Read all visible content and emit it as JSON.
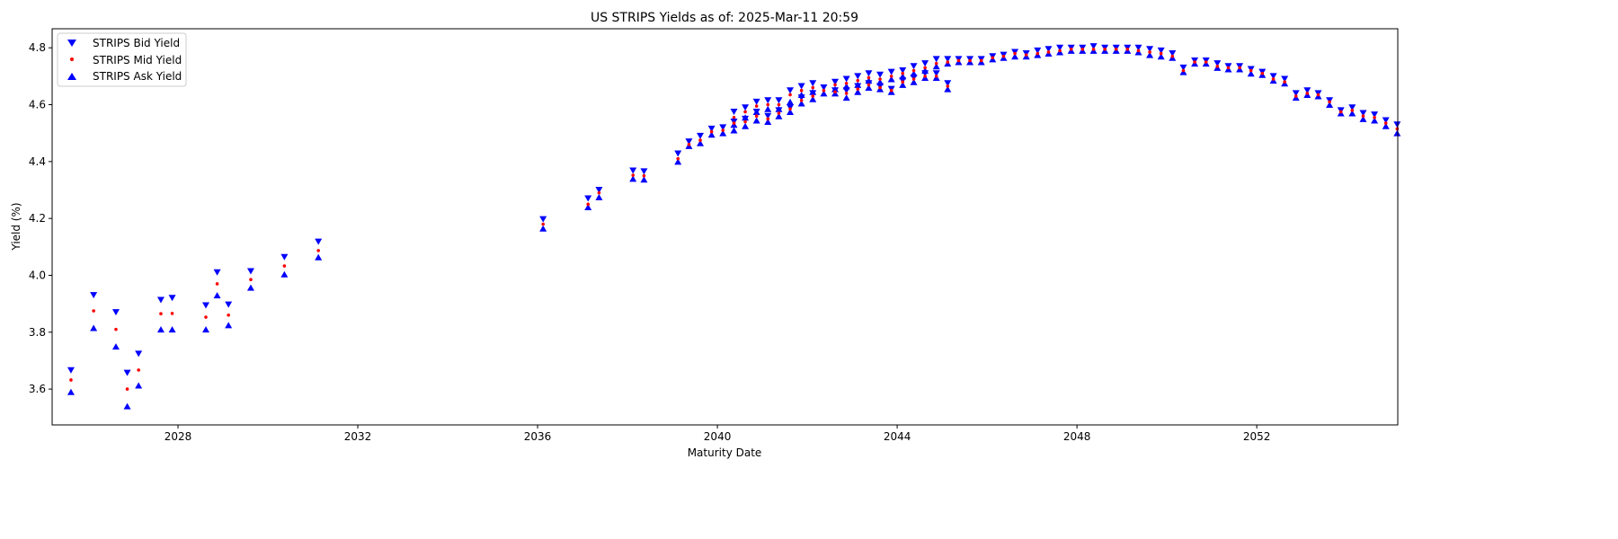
{
  "chart_data": {
    "type": "scatter",
    "title": "US STRIPS Yields as of: 2025-Mar-11 20:59",
    "xlabel": "Maturity Date",
    "ylabel": "Yield (%)",
    "xlim": [
      "2025-03-15",
      "2055-02-20"
    ],
    "ylim": [
      3.474,
      4.867
    ],
    "x_ticks": [
      "2028",
      "2032",
      "2036",
      "2040",
      "2044",
      "2048",
      "2052"
    ],
    "y_ticks": [
      "3.6",
      "3.8",
      "4.0",
      "4.2",
      "4.4",
      "4.6",
      "4.8"
    ],
    "grid": false,
    "legend_position": "top-left",
    "series": [
      {
        "name": "STRIPS Bid Yield",
        "marker": "triangle-down",
        "color": "#0000ff"
      },
      {
        "name": "STRIPS Mid Yield",
        "marker": "dot",
        "color": "#ff0000"
      },
      {
        "name": "STRIPS Ask Yield",
        "marker": "triangle-up",
        "color": "#0000ff"
      }
    ],
    "point_columns": [
      "maturity",
      "bid",
      "mid",
      "ask"
    ],
    "points": [
      [
        "2025-08-15",
        3.666,
        3.632,
        3.59
      ],
      [
        "2026-02-15",
        3.93,
        3.875,
        3.815
      ],
      [
        "2026-08-15",
        3.87,
        3.81,
        3.75
      ],
      [
        "2026-11-15",
        3.657,
        3.6,
        3.54
      ],
      [
        "2027-02-15",
        3.724,
        3.667,
        3.613
      ],
      [
        "2027-08-15",
        3.913,
        3.865,
        3.81
      ],
      [
        "2027-11-15",
        3.92,
        3.866,
        3.81
      ],
      [
        "2028-08-15",
        3.894,
        3.853,
        3.81
      ],
      [
        "2028-11-15",
        4.01,
        3.97,
        3.93
      ],
      [
        "2029-02-15",
        3.897,
        3.86,
        3.825
      ],
      [
        "2029-08-15",
        4.014,
        3.985,
        3.957
      ],
      [
        "2030-05-15",
        4.064,
        4.033,
        4.004
      ],
      [
        "2031-02-15",
        4.118,
        4.087,
        4.064
      ],
      [
        "2036-02-15",
        4.197,
        4.18,
        4.165
      ],
      [
        "2037-02-15",
        4.27,
        4.25,
        4.24
      ],
      [
        "2037-05-15",
        4.3,
        4.29,
        4.275
      ],
      [
        "2038-02-15",
        4.368,
        4.352,
        4.34
      ],
      [
        "2038-05-15",
        4.365,
        4.35,
        4.337
      ],
      [
        "2039-02-15",
        4.428,
        4.41,
        4.4
      ],
      [
        "2039-05-15",
        4.47,
        4.46,
        4.455
      ],
      [
        "2039-08-15",
        4.49,
        4.475,
        4.465
      ],
      [
        "2039-11-15",
        4.515,
        4.505,
        4.495
      ],
      [
        "2040-02-15",
        4.52,
        4.51,
        4.5
      ],
      [
        "2040-05-15",
        4.575,
        4.555,
        4.51
      ],
      [
        "2040-05-15",
        4.54,
        4.535,
        4.53
      ],
      [
        "2040-08-15",
        4.59,
        4.575,
        4.555
      ],
      [
        "2040-08-15",
        4.55,
        4.54,
        4.525
      ],
      [
        "2040-11-15",
        4.61,
        4.595,
        4.575
      ],
      [
        "2040-11-15",
        4.575,
        4.56,
        4.545
      ],
      [
        "2041-02-15",
        4.615,
        4.6,
        4.585
      ],
      [
        "2041-02-15",
        4.56,
        4.55,
        4.54
      ],
      [
        "2041-05-15",
        4.615,
        4.6,
        4.585
      ],
      [
        "2041-05-15",
        4.58,
        4.57,
        4.56
      ],
      [
        "2041-08-15",
        4.65,
        4.635,
        4.61
      ],
      [
        "2041-08-15",
        4.59,
        4.585,
        4.575
      ],
      [
        "2041-11-15",
        4.665,
        4.65,
        4.635
      ],
      [
        "2041-11-15",
        4.625,
        4.615,
        4.605
      ],
      [
        "2042-02-15",
        4.675,
        4.66,
        4.645
      ],
      [
        "2042-02-15",
        4.64,
        4.63,
        4.62
      ],
      [
        "2042-05-15",
        4.66,
        4.65,
        4.64
      ],
      [
        "2042-08-15",
        4.68,
        4.67,
        4.655
      ],
      [
        "2042-08-15",
        4.65,
        4.645,
        4.64
      ],
      [
        "2042-11-15",
        4.69,
        4.675,
        4.665
      ],
      [
        "2042-11-15",
        4.65,
        4.64,
        4.625
      ],
      [
        "2043-02-15",
        4.7,
        4.685,
        4.67
      ],
      [
        "2043-02-15",
        4.665,
        4.655,
        4.645
      ],
      [
        "2043-05-15",
        4.71,
        4.695,
        4.685
      ],
      [
        "2043-05-15",
        4.675,
        4.67,
        4.66
      ],
      [
        "2043-08-15",
        4.705,
        4.69,
        4.68
      ],
      [
        "2043-08-15",
        4.665,
        4.66,
        4.655
      ],
      [
        "2043-11-15",
        4.715,
        4.7,
        4.69
      ],
      [
        "2043-11-15",
        4.655,
        4.65,
        4.645
      ],
      [
        "2044-02-15",
        4.72,
        4.71,
        4.7
      ],
      [
        "2044-02-15",
        4.685,
        4.68,
        4.67
      ],
      [
        "2044-05-15",
        4.735,
        4.72,
        4.71
      ],
      [
        "2044-05-15",
        4.695,
        4.69,
        4.68
      ],
      [
        "2044-08-15",
        4.745,
        4.73,
        4.72
      ],
      [
        "2044-08-15",
        4.71,
        4.7,
        4.695
      ],
      [
        "2044-11-15",
        4.76,
        4.745,
        4.735
      ],
      [
        "2044-11-15",
        4.71,
        4.7,
        4.695
      ],
      [
        "2045-02-15",
        4.76,
        4.75,
        4.745
      ],
      [
        "2045-02-15",
        4.675,
        4.665,
        4.655
      ],
      [
        "2045-05-15",
        4.76,
        4.755,
        4.75
      ],
      [
        "2045-08-15",
        4.76,
        4.755,
        4.75
      ],
      [
        "2045-11-15",
        4.76,
        4.755,
        4.75
      ],
      [
        "2046-02-15",
        4.77,
        4.765,
        4.76
      ],
      [
        "2046-05-15",
        4.775,
        4.77,
        4.765
      ],
      [
        "2046-08-15",
        4.785,
        4.78,
        4.77
      ],
      [
        "2046-11-15",
        4.78,
        4.775,
        4.77
      ],
      [
        "2047-02-15",
        4.79,
        4.78,
        4.775
      ],
      [
        "2047-05-15",
        4.795,
        4.785,
        4.78
      ],
      [
        "2047-08-15",
        4.8,
        4.79,
        4.785
      ],
      [
        "2047-11-15",
        4.8,
        4.795,
        4.79
      ],
      [
        "2048-02-15",
        4.8,
        4.795,
        4.79
      ],
      [
        "2048-05-15",
        4.805,
        4.795,
        4.79
      ],
      [
        "2048-08-15",
        4.8,
        4.795,
        4.79
      ],
      [
        "2048-11-15",
        4.8,
        4.795,
        4.79
      ],
      [
        "2049-02-15",
        4.8,
        4.795,
        4.79
      ],
      [
        "2049-05-15",
        4.8,
        4.79,
        4.785
      ],
      [
        "2049-08-15",
        4.795,
        4.785,
        4.775
      ],
      [
        "2049-11-15",
        4.79,
        4.78,
        4.77
      ],
      [
        "2050-02-15",
        4.78,
        4.77,
        4.765
      ],
      [
        "2050-05-15",
        4.73,
        4.72,
        4.715
      ],
      [
        "2050-08-15",
        4.755,
        4.75,
        4.745
      ],
      [
        "2050-11-15",
        4.755,
        4.75,
        4.745
      ],
      [
        "2051-02-15",
        4.745,
        4.735,
        4.73
      ],
      [
        "2051-05-15",
        4.735,
        4.73,
        4.725
      ],
      [
        "2051-08-15",
        4.735,
        4.73,
        4.725
      ],
      [
        "2051-11-15",
        4.725,
        4.72,
        4.71
      ],
      [
        "2052-02-15",
        4.715,
        4.71,
        4.705
      ],
      [
        "2052-05-15",
        4.7,
        4.69,
        4.685
      ],
      [
        "2052-08-15",
        4.69,
        4.68,
        4.675
      ],
      [
        "2052-11-15",
        4.64,
        4.63,
        4.625
      ],
      [
        "2053-02-15",
        4.65,
        4.64,
        4.635
      ],
      [
        "2053-05-15",
        4.64,
        4.635,
        4.63
      ],
      [
        "2053-08-15",
        4.615,
        4.61,
        4.6
      ],
      [
        "2053-11-15",
        4.58,
        4.575,
        4.57
      ],
      [
        "2054-02-15",
        4.59,
        4.58,
        4.57
      ],
      [
        "2054-05-15",
        4.57,
        4.56,
        4.55
      ],
      [
        "2054-08-15",
        4.565,
        4.555,
        4.545
      ],
      [
        "2054-11-15",
        4.545,
        4.535,
        4.525
      ],
      [
        "2055-02-15",
        4.53,
        4.515,
        4.5
      ]
    ]
  }
}
